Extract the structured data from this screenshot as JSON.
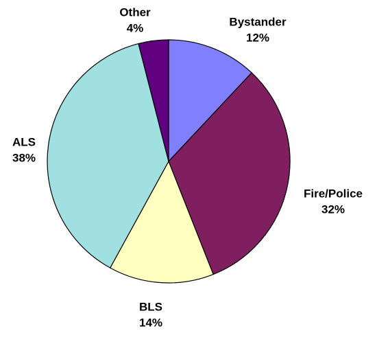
{
  "chart_data": {
    "type": "pie",
    "categories": [
      "Bystander",
      "Fire/Police",
      "BLS",
      "ALS",
      "Other"
    ],
    "values": [
      12,
      32,
      14,
      38,
      4
    ],
    "value_labels": [
      "12%",
      "32%",
      "14%",
      "38%",
      "4%"
    ],
    "colors": [
      "#8080ff",
      "#7f1f5f",
      "#ffffc0",
      "#a0e0e0",
      "#600080"
    ]
  }
}
